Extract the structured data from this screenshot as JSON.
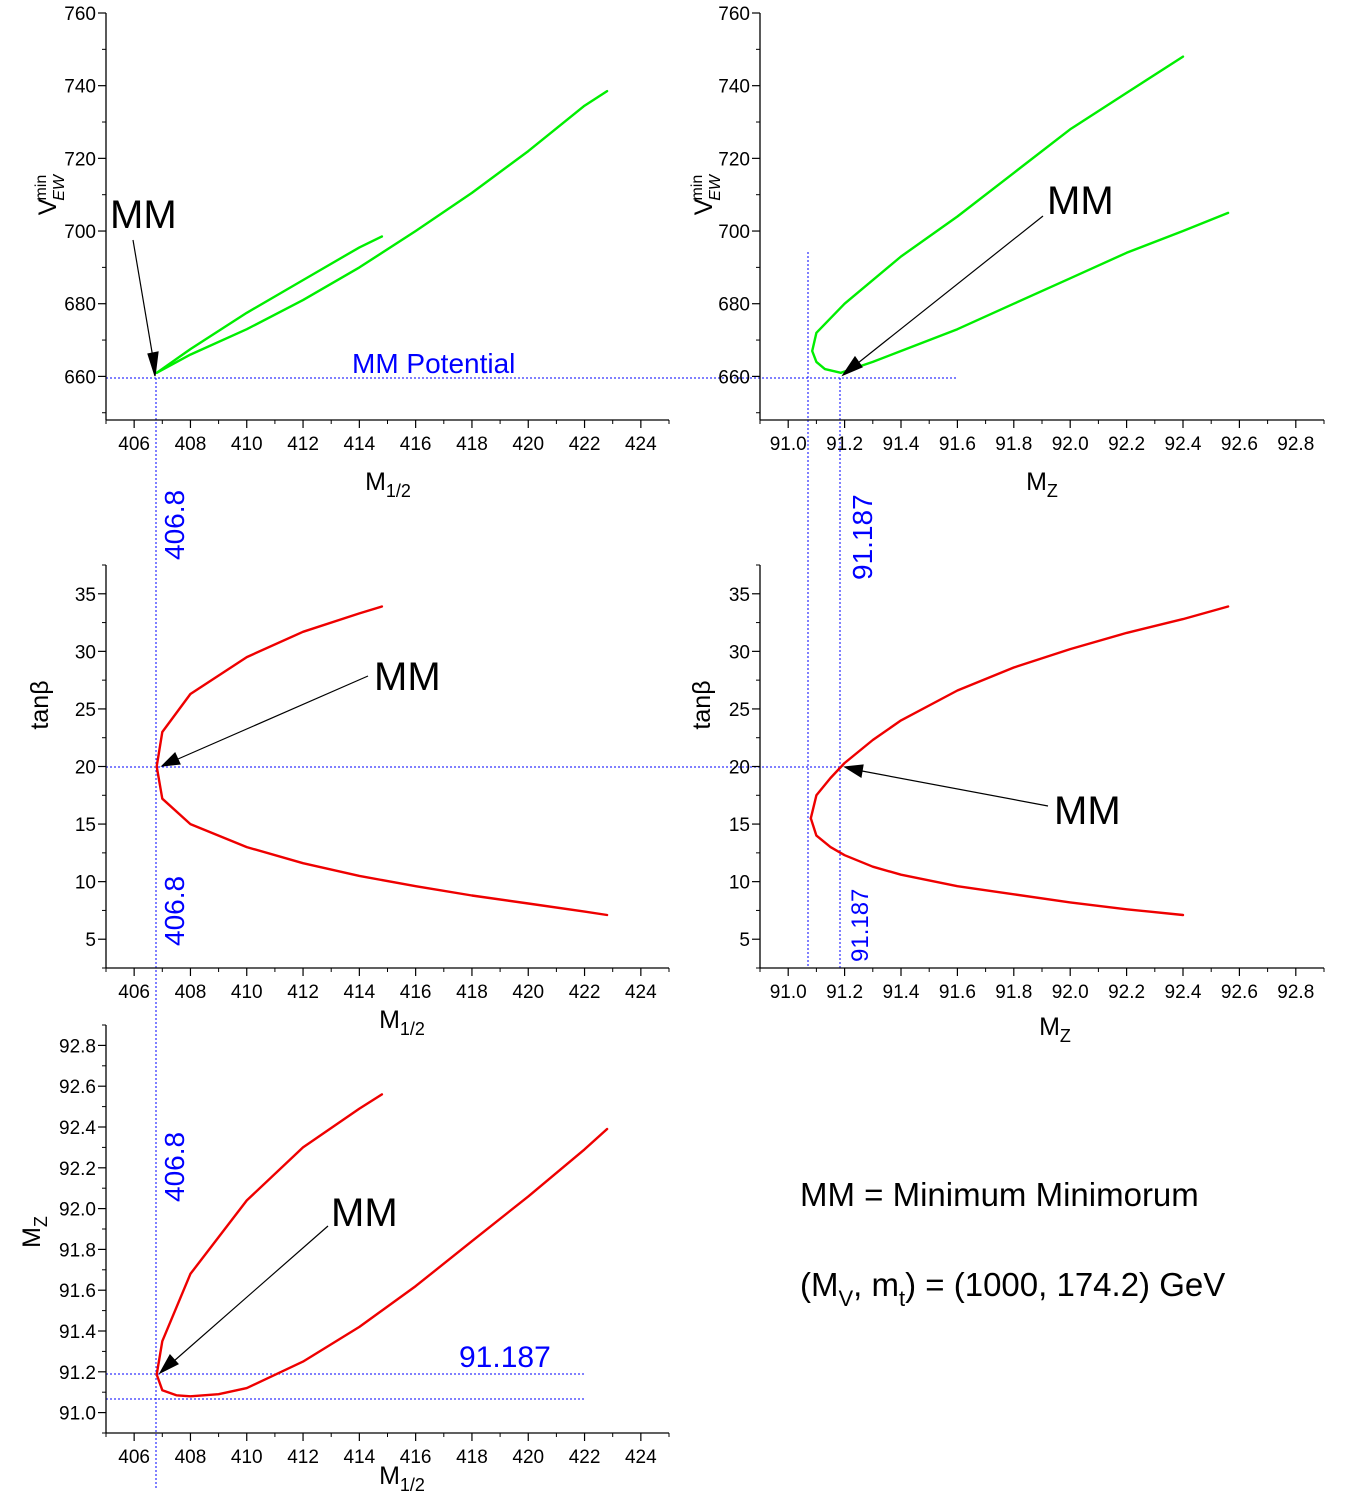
{
  "chart_data": [
    {
      "id": "p1",
      "type": "line",
      "xlabel": "M",
      "xlabel_sub": "1/2",
      "ylabel": "V",
      "ylabel_sup": "min",
      "ylabel_sub": "EW",
      "xlim": [
        405,
        425
      ],
      "ylim": [
        648,
        760
      ],
      "xticks": [
        "406",
        "408",
        "410",
        "412",
        "414",
        "416",
        "418",
        "420",
        "422",
        "424"
      ],
      "yticks": [
        "660",
        "680",
        "700",
        "720",
        "740",
        "760"
      ],
      "series": [
        {
          "color": "#00ee00",
          "points": [
            [
              406.8,
              661
            ],
            [
              408,
              667.5
            ],
            [
              410,
              677.5
            ],
            [
              412,
              686.5
            ],
            [
              414,
              695.5
            ],
            [
              414.8,
              698.5
            ]
          ]
        },
        {
          "color": "#00ee00",
          "points": [
            [
              406.8,
              661
            ],
            [
              408,
              666
            ],
            [
              410,
              673
            ],
            [
              412,
              681
            ],
            [
              414,
              690
            ],
            [
              416,
              700
            ],
            [
              418,
              710.5
            ],
            [
              420,
              722
            ],
            [
              422,
              734.5
            ],
            [
              422.8,
              738.5
            ]
          ]
        }
      ],
      "annotations": [
        {
          "text": "MM",
          "target": [
            406.8,
            661
          ]
        },
        {
          "text": "MM Potential"
        }
      ]
    },
    {
      "id": "p2",
      "type": "line",
      "xlabel": "M",
      "xlabel_sub": "Z",
      "ylabel": "V",
      "ylabel_sup": "min",
      "ylabel_sub": "EW",
      "xlim": [
        90.9,
        92.9
      ],
      "ylim": [
        648,
        760
      ],
      "xticks": [
        "91.0",
        "91.2",
        "91.4",
        "91.6",
        "91.8",
        "92.0",
        "92.2",
        "92.4",
        "92.6",
        "92.8"
      ],
      "yticks": [
        "660",
        "680",
        "700",
        "720",
        "740",
        "760"
      ],
      "series": [
        {
          "color": "#00ee00",
          "points": [
            [
              91.187,
              661
            ],
            [
              91.13,
              662
            ],
            [
              91.1,
              664
            ],
            [
              91.085,
              667
            ],
            [
              91.1,
              672
            ],
            [
              91.2,
              680
            ],
            [
              91.4,
              693
            ],
            [
              91.6,
              704
            ],
            [
              91.8,
              716
            ],
            [
              92.0,
              728
            ],
            [
              92.2,
              738
            ],
            [
              92.4,
              748
            ]
          ]
        },
        {
          "color": "#00ee00",
          "points": [
            [
              91.187,
              661
            ],
            [
              91.3,
              664
            ],
            [
              91.4,
              667
            ],
            [
              91.6,
              673
            ],
            [
              91.8,
              680
            ],
            [
              92.0,
              687
            ],
            [
              92.2,
              694
            ],
            [
              92.4,
              700
            ],
            [
              92.56,
              705
            ]
          ]
        }
      ],
      "annotations": [
        {
          "text": "MM",
          "target": [
            91.187,
            661
          ]
        },
        {
          "text": "91.187"
        }
      ]
    },
    {
      "id": "p3",
      "type": "line",
      "xlabel": "M",
      "xlabel_sub": "1/2",
      "ylabel": "tanβ",
      "xlim": [
        405,
        425
      ],
      "ylim": [
        2.5,
        37.5
      ],
      "xticks": [
        "406",
        "408",
        "410",
        "412",
        "414",
        "416",
        "418",
        "420",
        "422",
        "424"
      ],
      "yticks": [
        "5",
        "10",
        "15",
        "20",
        "25",
        "30",
        "35"
      ],
      "series": [
        {
          "color": "#ee0000",
          "points": [
            [
              406.8,
              20
            ],
            [
              407,
              23
            ],
            [
              408,
              26.3
            ],
            [
              410,
              29.5
            ],
            [
              412,
              31.7
            ],
            [
              414,
              33.3
            ],
            [
              414.8,
              33.9
            ]
          ]
        },
        {
          "color": "#ee0000",
          "points": [
            [
              406.8,
              20
            ],
            [
              407,
              17.2
            ],
            [
              408,
              15
            ],
            [
              410,
              13
            ],
            [
              412,
              11.6
            ],
            [
              414,
              10.5
            ],
            [
              416,
              9.6
            ],
            [
              418,
              8.8
            ],
            [
              420,
              8.1
            ],
            [
              422,
              7.4
            ],
            [
              422.8,
              7.1
            ]
          ]
        }
      ],
      "annotations": [
        {
          "text": "MM",
          "target": [
            406.8,
            20
          ]
        },
        {
          "text": "406.8"
        }
      ]
    },
    {
      "id": "p4",
      "type": "line",
      "xlabel": "M",
      "xlabel_sub": "Z",
      "ylabel": "tanβ",
      "xlim": [
        90.9,
        92.9
      ],
      "ylim": [
        2.5,
        37.5
      ],
      "xticks": [
        "91.0",
        "91.2",
        "91.4",
        "91.6",
        "91.8",
        "92.0",
        "92.2",
        "92.4",
        "92.6",
        "92.8"
      ],
      "yticks": [
        "5",
        "10",
        "15",
        "20",
        "25",
        "30",
        "35"
      ],
      "series": [
        {
          "color": "#ee0000",
          "points": [
            [
              91.08,
              15.5
            ],
            [
              91.1,
              17.5
            ],
            [
              91.15,
              19
            ],
            [
              91.2,
              20.3
            ],
            [
              91.3,
              22.3
            ],
            [
              91.4,
              24
            ],
            [
              91.6,
              26.6
            ],
            [
              91.8,
              28.6
            ],
            [
              92.0,
              30.2
            ],
            [
              92.2,
              31.6
            ],
            [
              92.4,
              32.8
            ],
            [
              92.56,
              33.9
            ]
          ]
        },
        {
          "color": "#ee0000",
          "points": [
            [
              91.08,
              15.5
            ],
            [
              91.1,
              14
            ],
            [
              91.15,
              13
            ],
            [
              91.2,
              12.3
            ],
            [
              91.3,
              11.3
            ],
            [
              91.4,
              10.6
            ],
            [
              91.6,
              9.6
            ],
            [
              91.8,
              8.9
            ],
            [
              92.0,
              8.2
            ],
            [
              92.2,
              7.6
            ],
            [
              92.4,
              7.1
            ]
          ]
        }
      ],
      "annotations": [
        {
          "text": "MM",
          "target": [
            91.2,
            20.1
          ]
        },
        {
          "text": "91.187"
        }
      ]
    },
    {
      "id": "p5",
      "type": "line",
      "xlabel": "M",
      "xlabel_sub": "1/2",
      "ylabel": "M",
      "ylabel_sub": "Z",
      "xlim": [
        405,
        425
      ],
      "ylim": [
        90.9,
        92.9
      ],
      "xticks": [
        "406",
        "408",
        "410",
        "412",
        "414",
        "416",
        "418",
        "420",
        "422",
        "424"
      ],
      "yticks": [
        "91.0",
        "91.2",
        "91.4",
        "91.6",
        "91.8",
        "92.0",
        "92.2",
        "92.4",
        "92.6",
        "92.8"
      ],
      "series": [
        {
          "color": "#ee0000",
          "points": [
            [
              406.8,
              91.187
            ],
            [
              407,
              91.35
            ],
            [
              408,
              91.68
            ],
            [
              410,
              92.04
            ],
            [
              412,
              92.3
            ],
            [
              414,
              92.49
            ],
            [
              414.8,
              92.56
            ]
          ]
        },
        {
          "color": "#ee0000",
          "points": [
            [
              406.8,
              91.187
            ],
            [
              407,
              91.11
            ],
            [
              407.5,
              91.085
            ],
            [
              408,
              91.08
            ],
            [
              409,
              91.09
            ],
            [
              410,
              91.12
            ],
            [
              412,
              91.25
            ],
            [
              414,
              91.42
            ],
            [
              416,
              91.62
            ],
            [
              418,
              91.84
            ],
            [
              420,
              92.06
            ],
            [
              422,
              92.29
            ],
            [
              422.8,
              92.39
            ]
          ]
        }
      ],
      "annotations": [
        {
          "text": "MM",
          "target": [
            406.8,
            91.187
          ]
        },
        {
          "text": "91.187"
        },
        {
          "text": "406.8"
        }
      ]
    }
  ],
  "legend_note": {
    "line1": "MM = Minimum Minimorum",
    "line2_a": "(M",
    "line2_sub1": "V",
    "line2_b": ", m",
    "line2_sub2": "t",
    "line2_c": ") = (1000, 174.2) GeV"
  },
  "colors": {
    "green": "#00ee00",
    "red": "#ee0000",
    "guide": "#0000ff"
  }
}
